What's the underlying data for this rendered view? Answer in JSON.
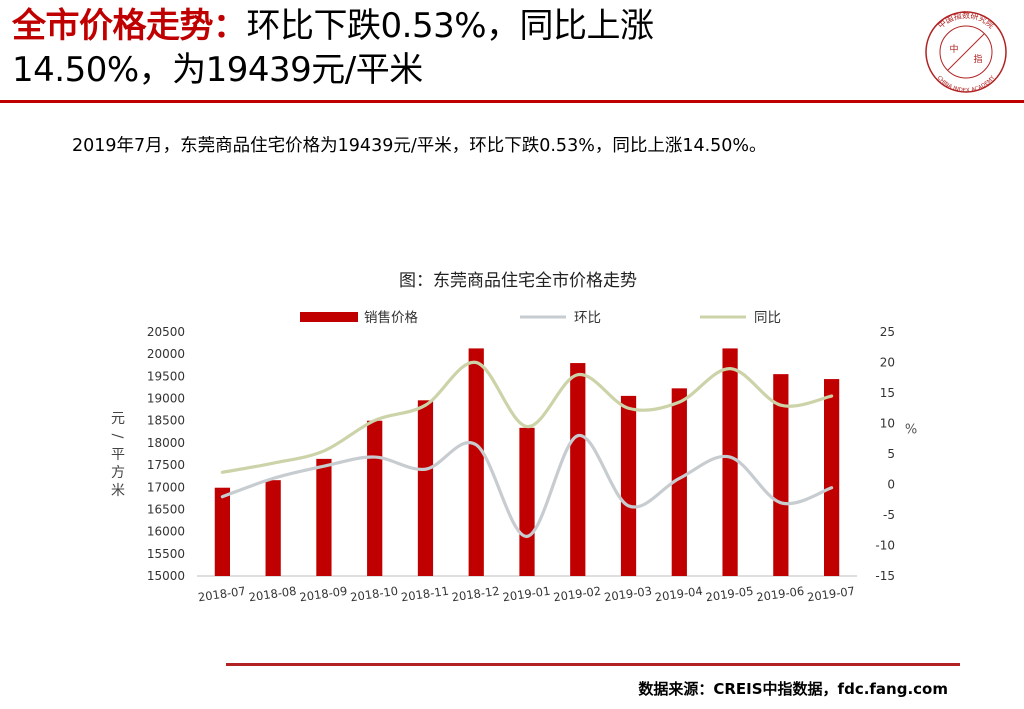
{
  "header": {
    "title_highlight": "全市价格走势：",
    "title_line1_rest": "环比下跌0.53%，同比上涨",
    "title_line2": "14.50%，为19439元/平米"
  },
  "logo": {
    "top_text": "中国指数研究院",
    "bottom_text": "CHINA INDEX ACADEMY",
    "center_left": "中",
    "center_right": "指"
  },
  "summary": "2019年7月，东莞商品住宅价格为19439元/平米，环比下跌0.53%，同比上涨14.50%。",
  "footer": {
    "source": "数据来源：CREIS中指数据，fdc.fang.com"
  },
  "colors": {
    "accent": "#c00000",
    "bar": "#c00000",
    "mom_line": "#c7ccd0",
    "yoy_line": "#ccd3a8"
  },
  "chart_data": {
    "type": "bar",
    "title": "图：东莞商品住宅全市价格走势",
    "categories": [
      "2018-07",
      "2018-08",
      "2018-09",
      "2018-10",
      "2018-11",
      "2018-12",
      "2019-01",
      "2019-02",
      "2019-03",
      "2019-04",
      "2019-05",
      "2019-06",
      "2019-07"
    ],
    "series": [
      {
        "name": "销售价格",
        "kind": "bar",
        "axis": "left",
        "values": [
          16990,
          17160,
          17640,
          18500,
          18960,
          20130,
          18340,
          19800,
          19060,
          19230,
          20130,
          19550,
          19439
        ]
      },
      {
        "name": "环比",
        "kind": "line",
        "axis": "right",
        "values": [
          -2.0,
          1.0,
          3.0,
          4.5,
          2.5,
          6.5,
          -8.5,
          8.0,
          -3.5,
          1.0,
          4.5,
          -3.0,
          -0.53
        ]
      },
      {
        "name": "同比",
        "kind": "line",
        "axis": "right",
        "values": [
          2.0,
          3.5,
          5.5,
          10.5,
          13.0,
          20.0,
          9.5,
          18.0,
          12.5,
          13.5,
          19.0,
          13.0,
          14.5
        ]
      }
    ],
    "ylabel_left": "元/平方米",
    "ylabel_right": "%",
    "ylim_left": [
      15000,
      20500
    ],
    "yticks_left": [
      15000,
      15500,
      16000,
      16500,
      17000,
      17500,
      18000,
      18500,
      19000,
      19500,
      20000,
      20500
    ],
    "ylim_right": [
      -15,
      25
    ],
    "yticks_right": [
      -15,
      -10,
      -5,
      0,
      5,
      10,
      15,
      20,
      25
    ],
    "legend_position": "top",
    "grid": false
  }
}
